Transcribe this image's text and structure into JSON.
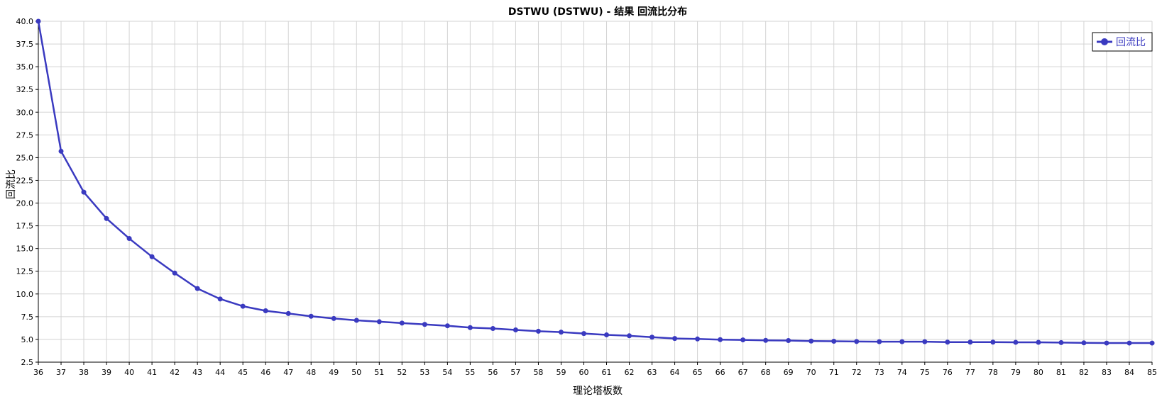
{
  "chart_data": {
    "type": "line",
    "title": "DSTWU (DSTWU) - 结果 回流比分布",
    "xlabel": "理论塔板数",
    "ylabel": "回流比",
    "xlim": [
      36,
      85
    ],
    "ylim": [
      2.5,
      40.0
    ],
    "grid": true,
    "legend_position": "top-right",
    "x": [
      36,
      37,
      38,
      39,
      40,
      41,
      42,
      43,
      44,
      45,
      46,
      47,
      48,
      49,
      50,
      51,
      52,
      53,
      54,
      55,
      56,
      57,
      58,
      59,
      60,
      61,
      62,
      63,
      64,
      65,
      66,
      67,
      68,
      69,
      70,
      71,
      72,
      73,
      74,
      75,
      76,
      77,
      78,
      79,
      80,
      81,
      82,
      83,
      84,
      85
    ],
    "series": [
      {
        "name": "回流比",
        "color": "#3a3ac0",
        "values": [
          40.0,
          25.7,
          21.2,
          18.3,
          16.1,
          14.1,
          12.3,
          10.6,
          9.45,
          8.65,
          8.15,
          7.85,
          7.55,
          7.3,
          7.1,
          6.95,
          6.8,
          6.65,
          6.5,
          6.3,
          6.2,
          6.05,
          5.9,
          5.8,
          5.65,
          5.5,
          5.4,
          5.25,
          5.1,
          5.05,
          4.98,
          4.95,
          4.9,
          4.88,
          4.82,
          4.8,
          4.77,
          4.75,
          4.75,
          4.75,
          4.7,
          4.7,
          4.7,
          4.68,
          4.68,
          4.65,
          4.62,
          4.6,
          4.6,
          4.6
        ]
      }
    ],
    "x_ticks": [
      "36",
      "37",
      "38",
      "39",
      "40",
      "41",
      "42",
      "43",
      "44",
      "45",
      "46",
      "47",
      "48",
      "49",
      "50",
      "51",
      "52",
      "53",
      "54",
      "55",
      "56",
      "57",
      "58",
      "59",
      "60",
      "61",
      "62",
      "63",
      "64",
      "65",
      "66",
      "67",
      "68",
      "69",
      "70",
      "71",
      "72",
      "73",
      "74",
      "75",
      "76",
      "77",
      "78",
      "79",
      "80",
      "81",
      "82",
      "83",
      "84",
      "85"
    ],
    "y_ticks": [
      "2.5",
      "5.0",
      "7.5",
      "10.0",
      "12.5",
      "15.0",
      "17.5",
      "20.0",
      "22.5",
      "25.0",
      "27.5",
      "30.0",
      "32.5",
      "35.0",
      "37.5",
      "40.0"
    ]
  }
}
